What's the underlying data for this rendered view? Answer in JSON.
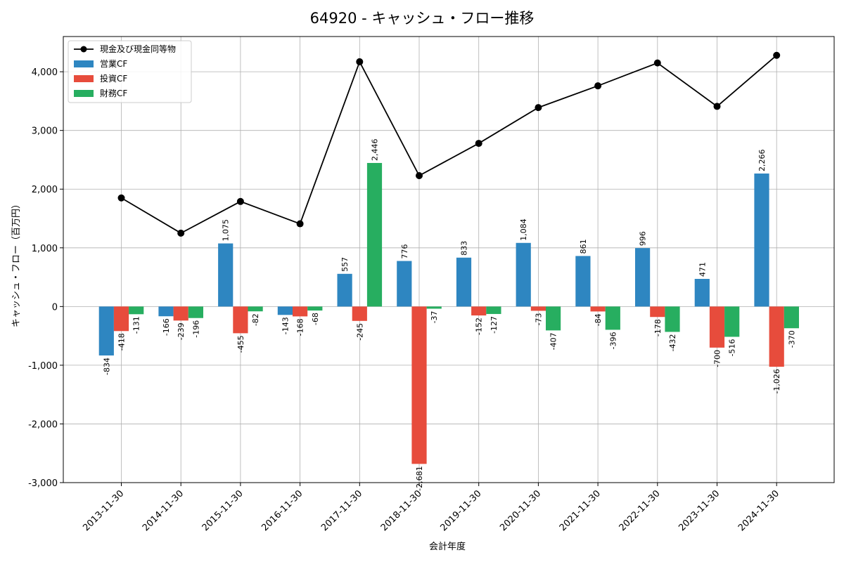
{
  "chart_data": {
    "type": "bar",
    "title": "64920 - キャッシュ・フロー推移",
    "xlabel": "会計年度",
    "ylabel": "キャッシュ・フロー（百万円）",
    "ylim": [
      -3000,
      4600
    ],
    "yticks": [
      -3000,
      -2000,
      -1000,
      0,
      1000,
      2000,
      3000,
      4000
    ],
    "ytick_labels": [
      "-3,000",
      "-2,000",
      "-1,000",
      "0",
      "1,000",
      "2,000",
      "3,000",
      "4,000"
    ],
    "grid": true,
    "legend_position": "top-left",
    "categories": [
      "2013-11-30",
      "2014-11-30",
      "2015-11-30",
      "2016-11-30",
      "2017-11-30",
      "2018-11-30",
      "2019-11-30",
      "2020-11-30",
      "2021-11-30",
      "2022-11-30",
      "2023-11-30",
      "2024-11-30"
    ],
    "series": [
      {
        "name": "営業CF",
        "kind": "bar",
        "color": "#2e86c1",
        "values": [
          -834,
          -166,
          1075,
          -143,
          557,
          776,
          833,
          1084,
          861,
          996,
          471,
          2266
        ],
        "labels": [
          "-834",
          "-166",
          "1,075",
          "-143",
          "557",
          "776",
          "833",
          "1,084",
          "861",
          "996",
          "471",
          "2,266"
        ]
      },
      {
        "name": "投資CF",
        "kind": "bar",
        "color": "#e74c3c",
        "values": [
          -418,
          -239,
          -455,
          -168,
          -245,
          -2681,
          -152,
          -73,
          -84,
          -178,
          -700,
          -1026
        ],
        "labels": [
          "-418",
          "-239",
          "-455",
          "-168",
          "-245",
          "-2,681",
          "-152",
          "-73",
          "-84",
          "-178",
          "-700",
          "-1,026"
        ]
      },
      {
        "name": "財務CF",
        "kind": "bar",
        "color": "#27ae60",
        "values": [
          -131,
          -196,
          -82,
          -68,
          2446,
          -37,
          -127,
          -407,
          -396,
          -432,
          -516,
          -370
        ],
        "labels": [
          "-131",
          "-196",
          "-82",
          "-68",
          "2,446",
          "-37",
          "-127",
          "-407",
          "-396",
          "-432",
          "-516",
          "-370"
        ]
      },
      {
        "name": "現金及び現金同等物",
        "kind": "line",
        "color": "#000000",
        "values": [
          1850,
          1250,
          1790,
          1410,
          4170,
          2230,
          2780,
          3390,
          3760,
          4150,
          3410,
          4280
        ]
      }
    ]
  }
}
